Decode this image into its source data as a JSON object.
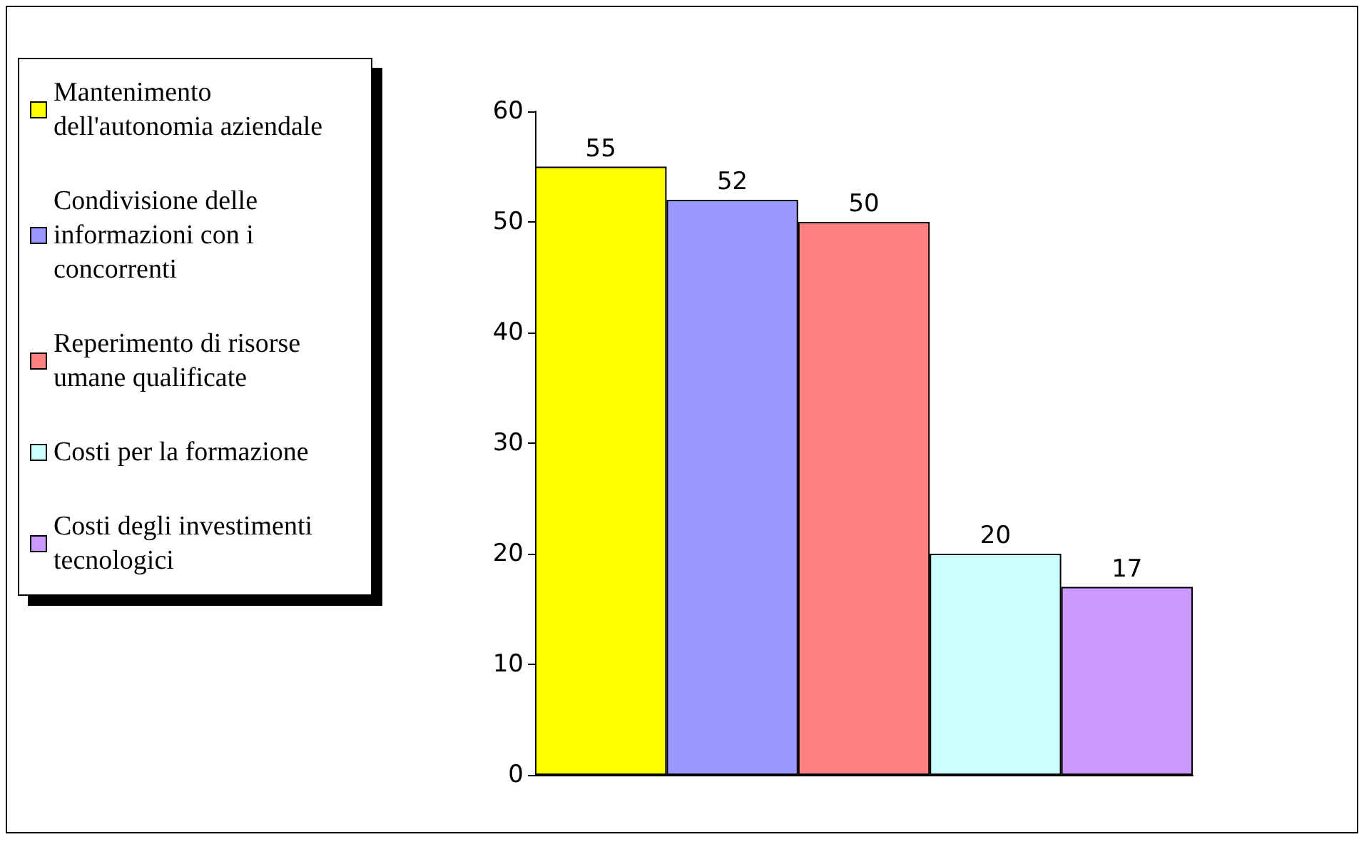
{
  "chart_data": {
    "type": "bar",
    "categories": [
      null
    ],
    "series": [
      {
        "name": "Mantenimento dell'autonomia aziendale",
        "color": "#ffff00",
        "values": [
          55
        ]
      },
      {
        "name": "Condivisione delle informazioni con i concorrenti",
        "color": "#9999ff",
        "values": [
          52
        ]
      },
      {
        "name": "Reperimento di risorse umane qualificate",
        "color": "#ff8080",
        "values": [
          50
        ]
      },
      {
        "name": "Costi per la formazione",
        "color": "#ccffff",
        "values": [
          20
        ]
      },
      {
        "name": "Costi degli investimenti tecnologici",
        "color": "#cc99ff",
        "values": [
          17
        ]
      }
    ],
    "ylim": [
      0,
      60
    ],
    "yticks": [
      0,
      10,
      20,
      30,
      40,
      50,
      60
    ],
    "grid": false,
    "legend": "left",
    "data_labels": true
  }
}
